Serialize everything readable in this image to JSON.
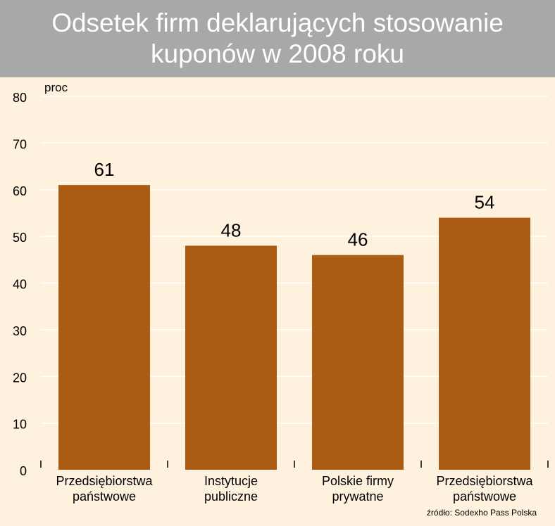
{
  "title": {
    "line1": "Odsetek firm deklarujących stosowanie",
    "line2": "kuponów w 2008 roku"
  },
  "colors": {
    "background": "#fef2de",
    "title_bar": "#a8a8a8",
    "bar": "#ab5c12",
    "gridline": "#ffffff"
  },
  "source": "źródło: Sodexho Pass Polska",
  "chart_data": {
    "type": "bar",
    "title": "Odsetek firm deklarujących stosowanie kuponów w 2008 roku",
    "ylabel": "proc",
    "xlabel": "",
    "ylim": [
      0,
      80
    ],
    "yticks": [
      0,
      10,
      20,
      30,
      40,
      50,
      60,
      70,
      80
    ],
    "grid": true,
    "categories": [
      [
        "Przedsiębiorstwa",
        "państwowe"
      ],
      [
        "Instytucje",
        "publiczne"
      ],
      [
        "Polskie firmy",
        "prywatne"
      ],
      [
        "Przedsiębiorstwa",
        "państwowe"
      ]
    ],
    "values": [
      61,
      48,
      46,
      54
    ]
  }
}
